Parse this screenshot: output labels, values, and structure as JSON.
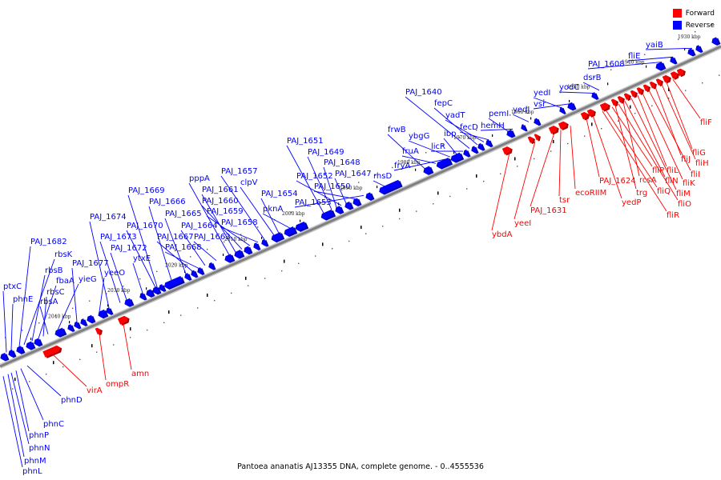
{
  "legend": [
    {
      "name": "Forward",
      "color": "#ff0000"
    },
    {
      "name": "Reverse",
      "color": "#0000ff"
    }
  ],
  "colors": {
    "forward": "#ff0000",
    "reverse": "#0000ff",
    "backbone": "#808080"
  },
  "footer": "Pantoea ananatis AJ13355 DNA, complete genome. - 0..4555536",
  "ticks": [
    "2040 kbp",
    "2030 kbp",
    "2020 kbp",
    "2010 kbp",
    "2000 kbp",
    "1990 kbp",
    "1980 kbp",
    "1970 kbp",
    "1960 kbp",
    "1950 kbp",
    "1940 kbp",
    "1930 kbp"
  ],
  "reverse_labels": [
    "ptxC",
    "phnE",
    "PAJ_1682",
    "rbsK",
    "rbsB",
    "fbaA",
    "rbsC",
    "rbsA",
    "yieG",
    "PAJ_1677",
    "yeeO",
    "PAJ_1674",
    "PAJ_1673",
    "PAJ_1672",
    "ytxE",
    "PAJ_1670",
    "PAJ_1669",
    "PAJ_1666",
    "PAJ_1665",
    "PAJ_1667",
    "PAJ_1668",
    "PAJ_1664",
    "PAJ_1663",
    "pppA",
    "PAJ_1661",
    "PAJ_1660",
    "PAJ_1659",
    "PAJ_1658",
    "PAJ_1657",
    "clpV",
    "PAJ_1654",
    "pknA",
    "PAJ_1651",
    "PAJ_1649",
    "PAJ_1648",
    "PAJ_1652",
    "PAJ_1647",
    "PAJ_1650",
    "PAJ_1653",
    "rhsD",
    "frwB",
    "fruA",
    "fryA",
    "ybgG",
    "ibp",
    "licR",
    "PAJ_1640",
    "fepC",
    "yadT",
    "fecD",
    "pemI",
    "hemH",
    "yedJ",
    "yedI",
    "vsr",
    "yodC",
    "dsrB",
    "PAJ_1608",
    "fliE",
    "yaiB"
  ],
  "forward_labels_top": [
    "fliF",
    "fliG",
    "fliH",
    "fliJ",
    "fliI",
    "fliK",
    "fliL",
    "fliM",
    "fliN",
    "fliO",
    "fliP",
    "fliQ",
    "fliR",
    "rcsA",
    "trg",
    "yedP",
    "PAJ_1624",
    "ecoRIIM",
    "tsr",
    "PAJ_1631",
    "yeeI",
    "ybdA"
  ],
  "forward_labels_bottom": [
    "amn",
    "ompR",
    "virA"
  ],
  "reverse_labels_bottom": [
    "phnD",
    "phnC",
    "phnP",
    "phnN",
    "phnM",
    "phnL"
  ]
}
